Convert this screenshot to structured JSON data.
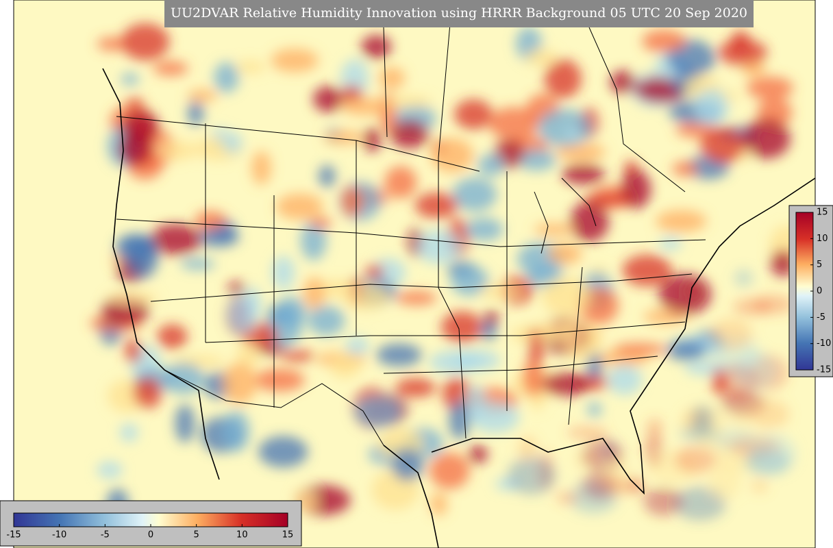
{
  "title": "UU2DVAR Relative Humidity Innovation using HRRR Background 05 UTC 20 Sep 2020",
  "colorbars": [
    {
      "orientation": "horizontal",
      "lim": [
        -15,
        15
      ],
      "ticks": [
        -15,
        -10,
        -5,
        0,
        5,
        10,
        15
      ]
    },
    {
      "orientation": "vertical",
      "lim": [
        -15,
        15
      ],
      "ticks": [
        15,
        10,
        5,
        0,
        -5,
        -10,
        -15
      ]
    }
  ]
}
